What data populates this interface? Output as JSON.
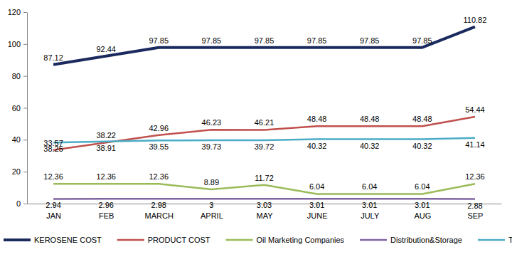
{
  "chart_data": {
    "type": "line",
    "categories": [
      "JAN",
      "FEB",
      "MARCH",
      "APRIL",
      "MAY",
      "JUNE",
      "JULY",
      "AUG",
      "SEP"
    ],
    "series": [
      {
        "name": "KEROSENE COST",
        "color": "#1B2A5E",
        "values": [
          87.12,
          92.44,
          97.85,
          97.85,
          97.85,
          97.85,
          97.85,
          97.85,
          110.82
        ]
      },
      {
        "name": "PRODUCT COST",
        "color": "#C0504D",
        "values": [
          33.57,
          38.22,
          42.96,
          46.23,
          46.21,
          48.48,
          48.48,
          48.48,
          54.44
        ]
      },
      {
        "name": "Oil Marketing Companies",
        "color": "#9BBB59",
        "values": [
          12.36,
          12.36,
          12.36,
          8.89,
          11.72,
          6.04,
          6.04,
          6.04,
          12.36
        ]
      },
      {
        "name": "Distribution&Storage",
        "color": "#8064A2",
        "values": [
          2.94,
          2.96,
          2.98,
          3,
          3.03,
          3.01,
          3.01,
          3.01,
          2.88
        ]
      },
      {
        "name": "TAXES&LEVIES",
        "color": "#4BACC6",
        "values": [
          38.25,
          38.91,
          39.55,
          39.73,
          39.72,
          40.32,
          40.32,
          40.32,
          41.14
        ]
      }
    ],
    "ylim": [
      0,
      120
    ],
    "yticks": [
      0,
      20,
      40,
      60,
      80,
      100,
      120
    ],
    "grid": false,
    "legend": "bottom",
    "data_labels": true
  }
}
